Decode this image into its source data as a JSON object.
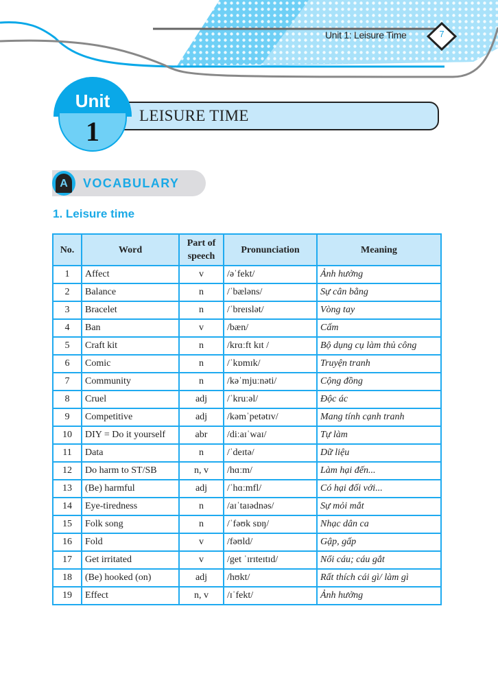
{
  "header": {
    "running_title": "Unit 1: Leisure Time",
    "page_number": "7"
  },
  "unit": {
    "label": "Unit",
    "number": "1",
    "title": "LEISURE TIME"
  },
  "vocabulary_badge": {
    "icon_letter": "A",
    "label": "VOCABULARY"
  },
  "section_title": "1. Leisure time",
  "colors": {
    "accent": "#1aa9e6",
    "table_header": "#c7e8fa",
    "border": "#1eaaf0"
  },
  "table": {
    "columns": [
      "No.",
      "Word",
      "Part of speech",
      "Pronunciation",
      "Meaning"
    ],
    "rows": [
      [
        "1",
        "Affect",
        "v",
        "/əˈfekt/",
        "Ảnh hưởng"
      ],
      [
        "2",
        "Balance",
        "n",
        "/ˈbæləns/",
        "Sự cân bằng"
      ],
      [
        "3",
        "Bracelet",
        "n",
        "/ˈbreɪslət/",
        "Vòng tay"
      ],
      [
        "4",
        "Ban",
        "v",
        "/bæn/",
        "Cấm"
      ],
      [
        "5",
        "Craft kit",
        "n",
        "/krɑːft kɪt /",
        "Bộ dụng cụ làm thủ công"
      ],
      [
        "6",
        "Comic",
        "n",
        "/ˈkɒmɪk/",
        "Truyện tranh"
      ],
      [
        "7",
        "Community",
        "n",
        "/kəˈmjuːnəti/",
        "Cộng đồng"
      ],
      [
        "8",
        "Cruel",
        "adj",
        "/ˈkruːəl/",
        "Độc ác"
      ],
      [
        "9",
        "Competitive",
        "adj",
        "/kəmˈpetətɪv/",
        "Mang tính cạnh tranh"
      ],
      [
        "10",
        "DIY = Do it yourself",
        "abr",
        "/diːaɪˈwaɪ/",
        "Tự làm"
      ],
      [
        "11",
        "Data",
        "n",
        "/ˈdeɪtə/",
        "Dữ liệu"
      ],
      [
        "12",
        "Do harm to ST/SB",
        "n, v",
        "/hɑːm/",
        "Làm hại đến..."
      ],
      [
        "13",
        "(Be) harmful",
        "adj",
        "/ˈhɑːmfl/",
        "Có hại đối với..."
      ],
      [
        "14",
        "Eye-tiredness",
        "n",
        "/aɪˈtaɪədnəs/",
        "Sự mỏi mắt"
      ],
      [
        "15",
        "Folk song",
        "n",
        "/ˈfəʊk sɒŋ/",
        "Nhạc dân ca"
      ],
      [
        "16",
        "Fold",
        "v",
        "/fəʊld/",
        "Gập, gấp"
      ],
      [
        "17",
        "Get irritated",
        "v",
        "/get ˈɪrɪteɪtɪd/",
        "Nổi cáu; cáu gắt"
      ],
      [
        "18",
        "(Be) hooked (on)",
        "adj",
        "/hʊkt/",
        "Rất thích cái gì/ làm gì"
      ],
      [
        "19",
        "Effect",
        "n, v",
        "/ɪˈfekt/",
        "Ảnh hưởng"
      ]
    ]
  }
}
